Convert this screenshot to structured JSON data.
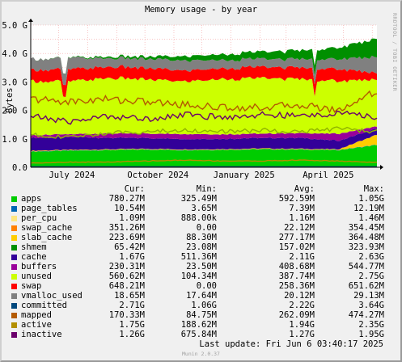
{
  "title": "Memory usage - by year",
  "side_note": "RRDTOOL / TOBI OETIKER",
  "version": "Munin 2.0.37",
  "last_update": "Last update: Fri Jun  6 03:40:17 2025",
  "chart_data": {
    "type": "area",
    "title": "Memory usage - by year",
    "ylabel": "Bytes",
    "y_unit": "bytes (G = 1e9)",
    "ylim": [
      0,
      5.0
    ],
    "y_ticks": [
      "0.0",
      "1.0 G",
      "2.0 G",
      "3.0 G",
      "4.0 G",
      "5.0 G"
    ],
    "x_ticks": [
      "July 2024",
      "October 2024",
      "January 2025",
      "April 2025"
    ],
    "x_range": [
      "2024-06-01",
      "2025-06-06"
    ],
    "grid": true,
    "legend_position": "bottom",
    "legend_headers": [
      "Cur:",
      "Min:",
      "Avg:",
      "Max:"
    ],
    "stacked_series": [
      {
        "name": "apps",
        "color": "#00cc00",
        "values": [
          0.55,
          0.58,
          0.6,
          0.62,
          0.6,
          0.61,
          0.63,
          0.62,
          0.6,
          0.78
        ]
      },
      {
        "name": "page_tables",
        "color": "#0066b3",
        "values": [
          0.01,
          0.01,
          0.01,
          0.01,
          0.01,
          0.01,
          0.01,
          0.01,
          0.01,
          0.01
        ]
      },
      {
        "name": "per_cpu",
        "color": "#ff8000",
        "values": [
          0.001,
          0.001,
          0.001,
          0.001,
          0.001,
          0.001,
          0.001,
          0.001,
          0.001,
          0.001
        ]
      },
      {
        "name": "swap_cache",
        "color": "#ffcc00",
        "values": [
          0.02,
          0.02,
          0.02,
          0.02,
          0.02,
          0.02,
          0.02,
          0.02,
          0.02,
          0.35
        ]
      },
      {
        "name": "slab_cache",
        "color": "#330099",
        "values": [
          0.45,
          0.45,
          0.4,
          0.38,
          0.36,
          0.36,
          0.37,
          0.38,
          0.3,
          0.22
        ]
      },
      {
        "name": "shmem",
        "color": "#990099",
        "values": [
          0.1,
          0.1,
          0.15,
          0.16,
          0.18,
          0.16,
          0.15,
          0.17,
          0.25,
          0.07
        ]
      },
      {
        "name": "cache",
        "color": "#ccff00",
        "values": [
          1.9,
          1.85,
          1.95,
          1.9,
          1.85,
          1.95,
          1.95,
          1.9,
          1.85,
          1.67
        ]
      },
      {
        "name": "buffers",
        "color": "#ff0000",
        "values": [
          0.4,
          0.42,
          0.4,
          0.4,
          0.38,
          0.38,
          0.39,
          0.4,
          0.42,
          0.23
        ]
      },
      {
        "name": "unused",
        "color": "#808080",
        "values": [
          0.38,
          0.4,
          0.3,
          0.32,
          0.35,
          0.3,
          0.28,
          0.3,
          0.35,
          0.56
        ]
      },
      {
        "name": "swap",
        "color": "#008f00",
        "values": [
          0.0,
          0.01,
          0.05,
          0.08,
          0.15,
          0.2,
          0.25,
          0.3,
          0.4,
          0.65
        ]
      }
    ],
    "line_series": [
      {
        "name": "vmalloc_used",
        "color": "#00487d",
        "values": [
          0.02,
          0.02,
          0.02,
          0.02,
          0.02,
          0.02,
          0.02,
          0.02,
          0.02,
          0.02
        ]
      },
      {
        "name": "committed",
        "color": "#b35a00",
        "values": [
          2.4,
          2.3,
          2.4,
          2.3,
          2.2,
          2.1,
          2.1,
          2.2,
          2.0,
          2.71
        ]
      },
      {
        "name": "mapped",
        "color": "#b38f00",
        "values": [
          0.15,
          0.18,
          0.18,
          0.22,
          0.25,
          0.22,
          0.22,
          0.25,
          0.22,
          0.17
        ]
      },
      {
        "name": "active",
        "color": "#6b006b",
        "values": [
          1.8,
          1.6,
          1.8,
          1.7,
          1.85,
          1.75,
          1.85,
          1.8,
          1.9,
          1.75
        ]
      },
      {
        "name": "inactive",
        "color": "#8fb300",
        "values": [
          1.15,
          1.05,
          1.2,
          1.25,
          1.3,
          1.25,
          1.3,
          1.25,
          1.35,
          1.26
        ]
      }
    ],
    "legend": [
      {
        "name": "apps",
        "color": "#00cc00",
        "cur": "780.27M",
        "min": "325.49M",
        "avg": "592.59M",
        "max": "1.05G"
      },
      {
        "name": "page_tables",
        "color": "#0066b3",
        "cur": "10.54M",
        "min": "3.65M",
        "avg": "7.39M",
        "max": "12.19M"
      },
      {
        "name": "per_cpu",
        "color": "#ffe680",
        "cur": "1.09M",
        "min": "888.00k",
        "avg": "1.16M",
        "max": "1.46M"
      },
      {
        "name": "swap_cache",
        "color": "#ff8000",
        "cur": "351.26M",
        "min": "0.00",
        "avg": "22.12M",
        "max": "354.45M"
      },
      {
        "name": "slab_cache",
        "color": "#ffcc00",
        "cur": "223.69M",
        "min": "88.30M",
        "avg": "277.17M",
        "max": "364.48M"
      },
      {
        "name": "shmem",
        "color": "#008f00",
        "cur": "65.42M",
        "min": "23.08M",
        "avg": "157.02M",
        "max": "323.93M"
      },
      {
        "name": "cache",
        "color": "#330099",
        "cur": "1.67G",
        "min": "511.36M",
        "avg": "2.11G",
        "max": "2.63G"
      },
      {
        "name": "buffers",
        "color": "#990099",
        "cur": "230.31M",
        "min": "23.50M",
        "avg": "408.68M",
        "max": "544.77M"
      },
      {
        "name": "unused",
        "color": "#ccff00",
        "cur": "560.62M",
        "min": "104.34M",
        "avg": "387.74M",
        "max": "2.75G"
      },
      {
        "name": "swap",
        "color": "#ff0000",
        "cur": "648.21M",
        "min": "0.00",
        "avg": "258.36M",
        "max": "651.62M"
      },
      {
        "name": "vmalloc_used",
        "color": "#808080",
        "cur": "18.65M",
        "min": "17.64M",
        "avg": "20.12M",
        "max": "29.13M"
      },
      {
        "name": "committed",
        "color": "#00487d",
        "cur": "2.71G",
        "min": "1.06G",
        "avg": "2.22G",
        "max": "3.64G"
      },
      {
        "name": "mapped",
        "color": "#b35a00",
        "cur": "170.33M",
        "min": "84.75M",
        "avg": "262.09M",
        "max": "474.27M"
      },
      {
        "name": "active",
        "color": "#b38f00",
        "cur": "1.75G",
        "min": "188.62M",
        "avg": "1.94G",
        "max": "2.35G"
      },
      {
        "name": "inactive",
        "color": "#6b006b",
        "cur": "1.26G",
        "min": "675.84M",
        "avg": "1.27G",
        "max": "1.95G"
      }
    ]
  }
}
